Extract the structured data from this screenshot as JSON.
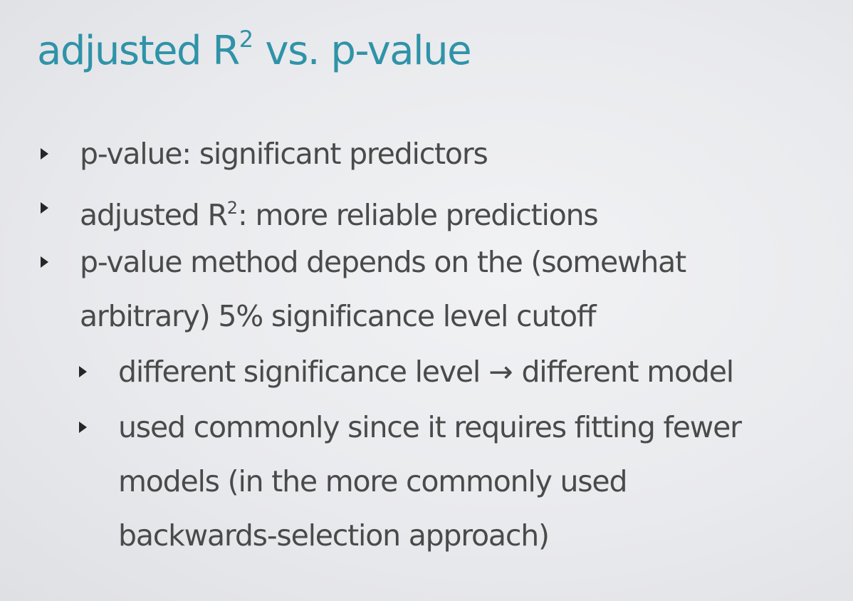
{
  "slide": {
    "title": {
      "main": "adjusted R",
      "superscript": "2",
      "rest": " vs. p-value"
    },
    "bullets": [
      {
        "text": "p-value: significant predictors"
      },
      {
        "pre": "adjusted R",
        "superscript": "2",
        "post": ": more reliable predictions"
      },
      {
        "line1": "p-value method depends on the (somewhat",
        "line2": "arbitrary) 5% significance level cutoff"
      }
    ],
    "sub_bullets": [
      {
        "left": "different significance level",
        "arrow": "→",
        "right": "different model"
      },
      {
        "line1": "used commonly since it requires fitting fewer",
        "line2": "models (in the more commonly used",
        "line3": "backwards-selection approach)"
      }
    ],
    "marker_icon": "triangle-right-bullet-icon",
    "colors": {
      "title": "#2f93a8",
      "body_text": "#4a4a4a",
      "bullet_marker": "#262626",
      "background": "#e9eaed"
    }
  }
}
